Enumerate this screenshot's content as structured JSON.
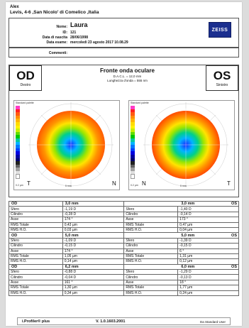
{
  "header": {
    "name": "Alex",
    "address": "Levis, 4-6 ,San Nicolo' di Comelico ,Italia"
  },
  "patient": {
    "nome_label": "Nome:",
    "nome": "Laura",
    "id_label": "ID:",
    "id": "121",
    "dob_label": "Data di nascita",
    "dob": "28/06/1998",
    "exam_label": "Data esame:",
    "exam": "mercoledi 23 agosto 2017 10.08.29",
    "comments_label": "Commenti:"
  },
  "brand": "ZEISS",
  "chart": {
    "title": "Fronte onda oculare",
    "dacl": "D.A.C.L. = 12,0 mm",
    "wavelength": "Lunghezza d'onda = 555 nm",
    "od_label": "OD",
    "od_sub": "Destro",
    "os_label": "OS",
    "os_sub": "Sinistro",
    "palette_label": "Standard palette",
    "step_label": "0.2 µm",
    "left_t": "T",
    "left_n": "N",
    "right_n": "N",
    "right_t": "T",
    "scale_mm": "5 mm"
  },
  "sections": [
    {
      "od_title": "OD",
      "od_mm": "3,0 mm",
      "os_mm": "3,0 mm",
      "os_title": "OS",
      "rows": [
        {
          "label": "Sfero",
          "od": "-1,19 D",
          "os": "-1,40 D"
        },
        {
          "label": "Cilindro",
          "od": "-0,28 D",
          "os": "-0,14 D"
        },
        {
          "label": "Asse",
          "od": "174 °",
          "os": "173 °"
        },
        {
          "label": "RMS Totale",
          "od": "0,43 µm",
          "os": "0,47 µm"
        },
        {
          "label": "RMS H.O.",
          "od": "0,03 µm",
          "os": "0,04 µm"
        }
      ]
    },
    {
      "od_title": "OD",
      "od_mm": "5,0 mm",
      "os_mm": "5,0 mm",
      "os_title": "OS",
      "rows": [
        {
          "label": "Sfero",
          "od": "-1,09 D",
          "os": "-1,39 D"
        },
        {
          "label": "Cilindro",
          "od": "-0,15 D",
          "os": "-0,15 D"
        },
        {
          "label": "Asse",
          "od": "174 °",
          "os": "6 °"
        },
        {
          "label": "RMS Totale",
          "od": "1,05 µm",
          "os": "1,31 µm"
        },
        {
          "label": "RMS H.O.",
          "od": "0,14 µm",
          "os": "0,12 µm"
        }
      ]
    },
    {
      "od_title": "OD",
      "od_mm": "6,2 mm",
      "os_mm": "6,0 mm",
      "os_title": "OS",
      "rows": [
        {
          "label": "Sfero",
          "od": "-0,88 D",
          "os": "-1,29 D"
        },
        {
          "label": "Cilindro",
          "od": "-0,04 D",
          "os": "-0,13 D"
        },
        {
          "label": "Asse",
          "od": "161 °",
          "os": "18 °"
        },
        {
          "label": "RMS Totale",
          "od": "1,30 µm",
          "os": "1,77 µm"
        },
        {
          "label": "RMS H.O.",
          "od": "0,34 µm",
          "os": "0,24 µm"
        }
      ]
    }
  ],
  "footer": {
    "product": "i.Profiler® plus",
    "version": "V. 1.0.1603.2001",
    "user": "Da Standard User"
  }
}
